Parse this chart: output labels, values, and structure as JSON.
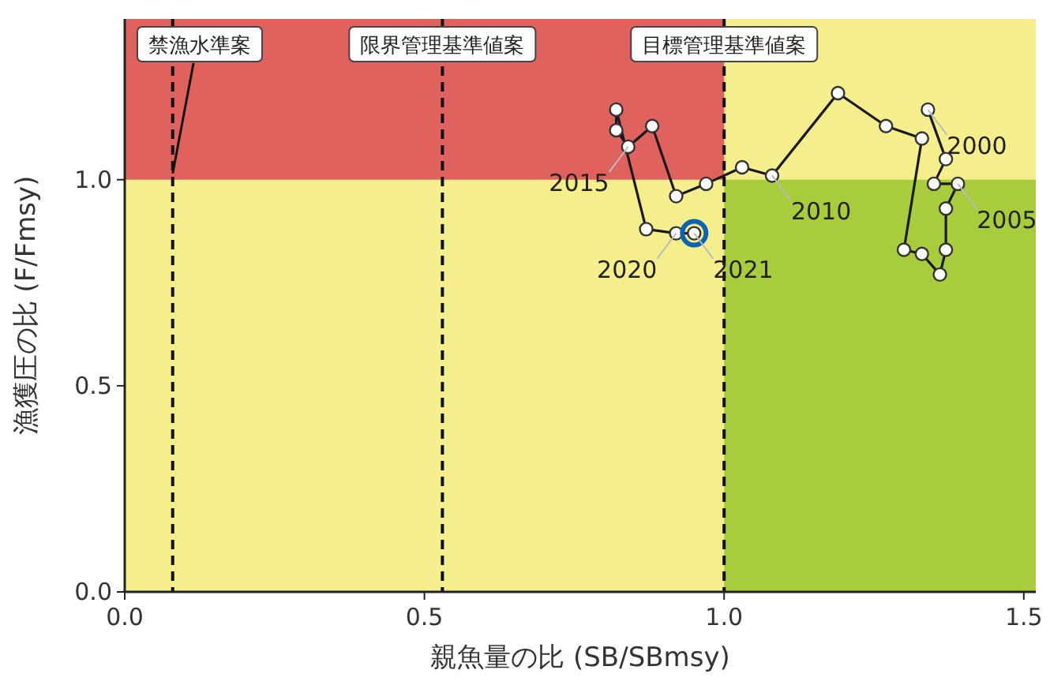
{
  "chart_data": {
    "type": "line",
    "xlabel": "親魚量の比 (SB/SBmsy)",
    "ylabel": "漁獲圧の比 (F/Fmsy)",
    "xlim": [
      0,
      1.52
    ],
    "ylim": [
      0,
      1.39
    ],
    "xticks": [
      {
        "value": 0,
        "label": "0.0"
      },
      {
        "value": 0.5,
        "label": "0.5"
      },
      {
        "value": 1,
        "label": "1.0"
      },
      {
        "value": 1.5,
        "label": "1.5"
      }
    ],
    "yticks": [
      {
        "value": 0,
        "label": "0.0"
      },
      {
        "value": 0.5,
        "label": "0.5"
      },
      {
        "value": 1,
        "label": "1.0"
      }
    ],
    "grid": false,
    "marker": "circle",
    "line_style": "solid",
    "series": [
      {
        "color": "#1a1a1a",
        "x": [
          1.34,
          1.37,
          1.35,
          1.39,
          1.37,
          1.37,
          1.36,
          1.33,
          1.3,
          1.33,
          1.27,
          1.19,
          1.08,
          1.03,
          0.97,
          0.92,
          0.88,
          0.84,
          0.82,
          0.82,
          0.87,
          0.92,
          0.95
        ],
        "values": [
          1.17,
          1.05,
          0.99,
          0.99,
          0.93,
          0.83,
          0.77,
          0.82,
          0.83,
          1.1,
          1.13,
          1.21,
          1.01,
          1.03,
          0.99,
          0.96,
          1.13,
          1.08,
          1.12,
          1.17,
          0.88,
          0.87,
          0.87
        ]
      }
    ],
    "ref_lines": [
      {
        "axis": "x",
        "value": 0.08,
        "label": "禁漁水準案",
        "line_style": "dashed"
      },
      {
        "axis": "x",
        "value": 0.53,
        "label": "限界管理基準値案",
        "line_style": "dashed"
      },
      {
        "axis": "x",
        "value": 1.0,
        "label": "目標管理基準値案",
        "line_style": "dashed"
      }
    ],
    "bands": [
      {
        "axis": "y",
        "from": 1.0,
        "to": 1.39,
        "color": "#e0625f"
      },
      {
        "axis": "x",
        "from": 1.0,
        "to": 1.52,
        "color": "#a9cc3c"
      }
    ],
    "annotations": [
      {
        "text": "2000",
        "x": 1.34,
        "y": 1.17
      },
      {
        "text": "2005",
        "x": 1.39,
        "y": 0.99
      },
      {
        "text": "2010",
        "x": 1.08,
        "y": 1.01
      },
      {
        "text": "2015",
        "x": 0.84,
        "y": 1.08
      },
      {
        "text": "2020",
        "x": 0.92,
        "y": 0.87
      },
      {
        "text": "2021",
        "x": 0.95,
        "y": 0.87
      }
    ]
  }
}
